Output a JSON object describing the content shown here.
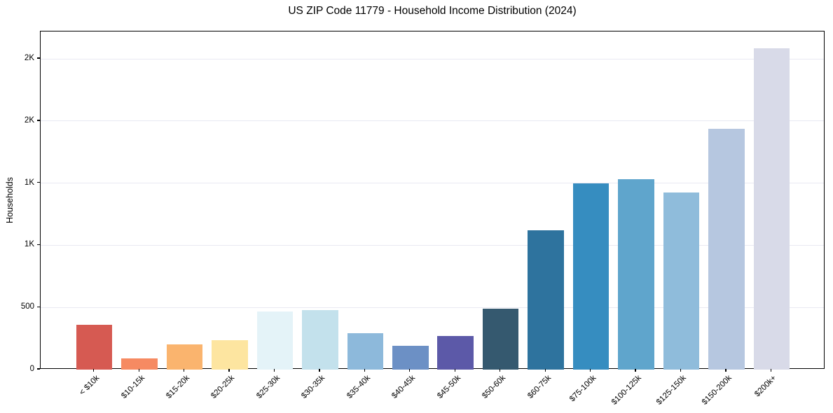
{
  "chart_data": {
    "type": "bar",
    "title": "US ZIP Code 11779 - Household Income Distribution (2024)",
    "xlabel": "",
    "ylabel": "Households",
    "categories": [
      "< $10k",
      "$10-15k",
      "$15-20k",
      "$20-25k",
      "$25-30k",
      "$30-35k",
      "$35-40k",
      "$40-45k",
      "$45-50k",
      "$50-60k",
      "$60-75k",
      "$75-100k",
      "$100-125k",
      "$125-150k",
      "$150-200k",
      "$200k+"
    ],
    "values": [
      360,
      90,
      200,
      235,
      465,
      480,
      295,
      190,
      270,
      490,
      1120,
      1500,
      1530,
      1425,
      1940,
      2585
    ],
    "bar_colors": [
      "#d65a52",
      "#f68a62",
      "#fab46e",
      "#fde5a0",
      "#e4f3f8",
      "#c3e1ec",
      "#8db9db",
      "#6c90c5",
      "#5c59a8",
      "#35596f",
      "#2e739e",
      "#368dc0",
      "#5fa5cc",
      "#8fbcdb",
      "#b6c7e0",
      "#d8dae8"
    ],
    "yticks": [
      {
        "value": 0,
        "label": "0"
      },
      {
        "value": 500,
        "label": "500"
      },
      {
        "value": 1000,
        "label": "1K"
      },
      {
        "value": 1500,
        "label": "1K"
      },
      {
        "value": 2000,
        "label": "2K"
      },
      {
        "value": 2500,
        "label": "2K"
      }
    ],
    "ylim": [
      0,
      2720
    ],
    "grid": "horizontal",
    "gridline_color": "#e8e9f2",
    "spine_color": "#000000",
    "background_color": "#ffffff",
    "legend": "none",
    "x_label_rotation_deg": 45
  }
}
